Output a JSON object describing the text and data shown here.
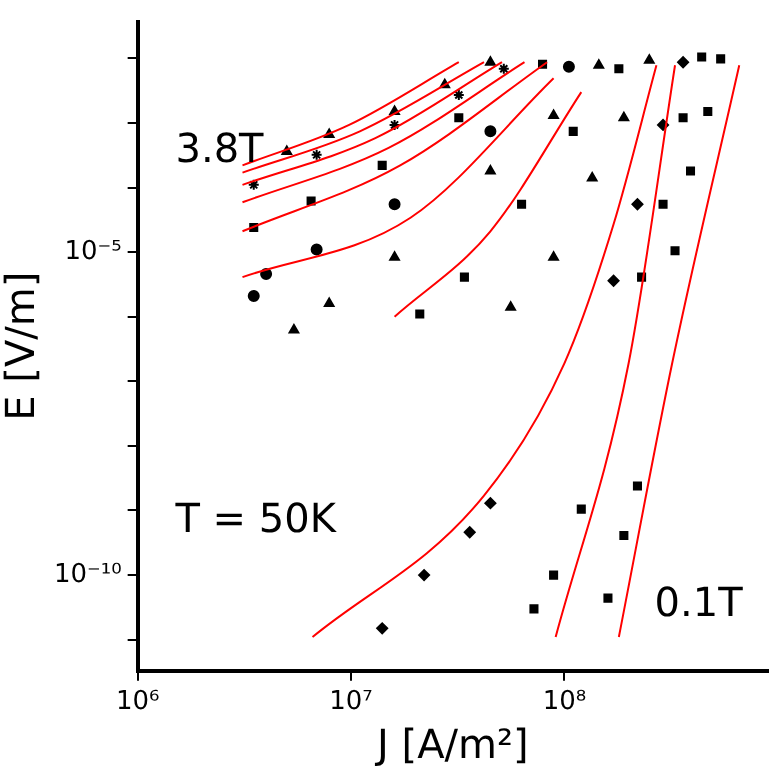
{
  "chart_data": {
    "type": "scatter",
    "xlabel": "J [A/m²]",
    "ylabel": "E [V/m]",
    "log": "xy",
    "grid": false,
    "legend": false,
    "xlim": [
      1000000,
      900000000
    ],
    "ylim": [
      3.3e-12,
      0.037
    ],
    "xticks": [
      {
        "value": 1000000,
        "label": "10⁶"
      },
      {
        "value": 10000000,
        "label": "10⁷"
      },
      {
        "value": 100000000,
        "label": "10⁸"
      }
    ],
    "yticks": [
      {
        "value": 1e-11,
        "label": null
      },
      {
        "value": 1e-10,
        "label": "10⁻¹⁰"
      },
      {
        "value": 1e-09,
        "label": null
      },
      {
        "value": 1e-08,
        "label": null
      },
      {
        "value": 1e-07,
        "label": null
      },
      {
        "value": 1e-06,
        "label": null
      },
      {
        "value": 1e-05,
        "label": "10⁻⁵"
      },
      {
        "value": 0.0001,
        "label": null
      },
      {
        "value": 0.001,
        "label": null
      },
      {
        "value": 0.01,
        "label": null
      }
    ],
    "annotations": [
      "3.8T",
      "T = 50K",
      "0.1T"
    ],
    "series": [
      {
        "type": "scatter",
        "marker": "triangle",
        "color": "#000000",
        "x": [
          5000000,
          7900000,
          16000000,
          27500000,
          45000000
        ],
        "values": [
          0.00036,
          0.00066,
          0.0015,
          0.0039,
          0.0087
        ]
      },
      {
        "marker": "cross",
        "color": "#000000",
        "x": [
          3500000,
          6900000,
          16000000,
          32000000,
          52000000
        ],
        "values": [
          0.00011,
          0.00032,
          0.00093,
          0.0027,
          0.0069
        ]
      },
      {
        "type": "scatter",
        "marker": "square",
        "color": "#000000",
        "x": [
          3500000,
          6500000,
          14000000,
          32000000,
          79000000
        ],
        "values": [
          2.4e-05,
          6.2e-05,
          0.00022,
          0.0012,
          0.0081
        ]
      },
      {
        "type": "scatter",
        "marker": "circle",
        "color": "#000000",
        "x": [
          3500000,
          4000000,
          6900000,
          16000000,
          45000000,
          105000000
        ],
        "values": [
          2.1e-06,
          4.6e-06,
          1.1e-05,
          5.5e-05,
          0.00074,
          0.0074
        ]
      },
      {
        "type": "scatter",
        "marker": "triangle",
        "color": "#000000",
        "x": [
          5400000,
          7900000,
          16000000,
          45000000,
          89000000,
          145000000
        ],
        "values": [
          6.2e-07,
          1.6e-06,
          8.3e-06,
          0.00018,
          0.0013,
          0.0078
        ]
      },
      {
        "type": "scatter",
        "marker": "square",
        "color": "#000000",
        "x": [
          21000000,
          34000000,
          63000000,
          110000000,
          180000000
        ],
        "values": [
          1.1e-06,
          4.1e-06,
          5.5e-05,
          0.00074,
          0.0069
        ]
      },
      {
        "type": "scatter",
        "marker": "triangle",
        "color": "#000000",
        "x": [
          56000000,
          89000000,
          135000000,
          190000000,
          250000000
        ],
        "values": [
          1.4e-06,
          8.3e-06,
          0.00014,
          0.0012,
          0.0093
        ]
      },
      {
        "type": "scatter",
        "marker": "diamond",
        "color": "#000000",
        "x": [
          170000000,
          220000000,
          290000000,
          360000000
        ],
        "values": [
          3.6e-06,
          5.5e-05,
          0.00093,
          0.0087
        ]
      },
      {
        "type": "scatter",
        "marker": "square",
        "color": "#000000",
        "x": [
          230000000,
          290000000,
          360000000,
          440000000
        ],
        "values": [
          4.1e-06,
          5.5e-05,
          0.0012,
          0.0105
        ]
      },
      {
        "type": "scatter",
        "marker": "square",
        "color": "#000000",
        "x": [
          330000000,
          390000000,
          470000000,
          540000000
        ],
        "values": [
          1.05e-05,
          0.00018,
          0.0015,
          0.0098
        ]
      },
      {
        "type": "scatter",
        "marker": "diamond",
        "color": "#000000",
        "x": [
          14000000,
          22000000,
          36000000,
          45000000
        ],
        "values": [
          1.5e-11,
          1e-10,
          4.6e-10,
          1.3e-09
        ]
      },
      {
        "type": "scatter",
        "marker": "square",
        "color": "#000000",
        "x": [
          72000000,
          89000000,
          120000000
        ],
        "values": [
          3e-11,
          1e-10,
          1.05e-09
        ]
      },
      {
        "type": "scatter",
        "marker": "square",
        "color": "#000000",
        "x": [
          160000000,
          190000000,
          220000000
        ],
        "values": [
          4.4e-11,
          4.1e-10,
          2.4e-09
        ]
      },
      {
        "type": "line",
        "marker": "none",
        "color": "#ff0000",
        "x": [
          3100000,
          9800000,
          32000000
        ],
        "values": [
          0.00022,
          0.00093,
          0.0087
        ]
      },
      {
        "type": "line",
        "marker": "none",
        "color": "#ff0000",
        "x": [
          3100000,
          11000000,
          42000000
        ],
        "values": [
          0.00017,
          0.00074,
          0.0087
        ]
      },
      {
        "type": "line",
        "marker": "none",
        "color": "#ff0000",
        "x": [
          3100000,
          13000000,
          51000000
        ],
        "values": [
          0.00011,
          0.00058,
          0.0087
        ]
      },
      {
        "type": "line",
        "marker": "none",
        "color": "#ff0000",
        "x": [
          3100000,
          15000000,
          65000000
        ],
        "values": [
          5.9e-05,
          0.00041,
          0.0087
        ]
      },
      {
        "type": "line",
        "marker": "none",
        "color": "#ff0000",
        "x": [
          3100000,
          17000000,
          83000000
        ],
        "values": [
          2.1e-05,
          0.00022,
          0.0087
        ]
      },
      {
        "type": "line",
        "marker": "none",
        "color": "#ff0000",
        "x": [
          3100000,
          19000000,
          89000000
        ],
        "values": [
          4.1e-06,
          3.4e-05,
          0.0049
        ]
      },
      {
        "type": "line",
        "marker": "none",
        "color": "#ff0000",
        "x": [
          16000000,
          45000000,
          120000000
        ],
        "values": [
          1e-06,
          2.1e-05,
          0.003
        ]
      },
      {
        "type": "line",
        "marker": "none",
        "color": "#ff0000",
        "x": [
          6600000,
          42000000,
          100000000,
          170000000,
          270000000
        ],
        "values": [
          1.1e-11,
          1.7e-09,
          1.9e-07,
          2.7e-05,
          0.0078
        ]
      },
      {
        "type": "line",
        "marker": "none",
        "color": "#ff0000",
        "x": [
          91000000,
          200000000,
          330000000
        ],
        "values": [
          1.1e-11,
          1.9e-07,
          0.0078
        ]
      },
      {
        "type": "line",
        "marker": "none",
        "color": "#ff0000",
        "x": [
          180000000,
          320000000,
          660000000
        ],
        "values": [
          1.1e-11,
          1.9e-07,
          0.0078
        ]
      }
    ]
  }
}
